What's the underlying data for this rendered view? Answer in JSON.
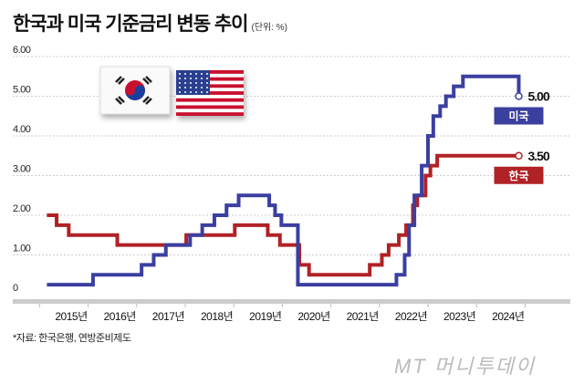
{
  "title": "한국과 미국 기준금리 변동 추이",
  "unit": "(단위: %)",
  "source": "*자료: 한국은행, 연방준비제도",
  "logo": "MT 머니투데이",
  "colors": {
    "us": "#3b3fa0",
    "korea": "#b02226",
    "grid": "#ccc"
  },
  "chart_data": {
    "type": "line",
    "step": true,
    "title": "한국과 미국 기준금리 변동 추이",
    "ylabel": "(단위: %)",
    "ylim": [
      0,
      6
    ],
    "xlim": [
      2015,
      2025
    ],
    "yticks": [
      "0",
      "1.00",
      "2.00",
      "3.00",
      "4.00",
      "5.00",
      "6.00"
    ],
    "xticks": [
      "2015년",
      "2016년",
      "2017년",
      "2018년",
      "2019년",
      "2020년",
      "2021년",
      "2022년",
      "2023년",
      "2024년"
    ],
    "series": [
      {
        "name": "미국",
        "color": "#3b3fa0",
        "end_label": "5.00",
        "points": [
          [
            2015,
            0.25
          ],
          [
            2015.95,
            0.5
          ],
          [
            2016.95,
            0.75
          ],
          [
            2017.2,
            1.0
          ],
          [
            2017.45,
            1.25
          ],
          [
            2017.95,
            1.5
          ],
          [
            2018.2,
            1.75
          ],
          [
            2018.45,
            2.0
          ],
          [
            2018.7,
            2.25
          ],
          [
            2018.95,
            2.5
          ],
          [
            2019.58,
            2.25
          ],
          [
            2019.7,
            2.0
          ],
          [
            2019.83,
            1.75
          ],
          [
            2020.17,
            0.25
          ],
          [
            2022.2,
            0.5
          ],
          [
            2022.37,
            1.0
          ],
          [
            2022.46,
            1.75
          ],
          [
            2022.57,
            2.5
          ],
          [
            2022.72,
            3.25
          ],
          [
            2022.85,
            4.0
          ],
          [
            2022.96,
            4.5
          ],
          [
            2023.1,
            4.75
          ],
          [
            2023.22,
            5.0
          ],
          [
            2023.38,
            5.25
          ],
          [
            2023.57,
            5.5
          ],
          [
            2024.72,
            5.0
          ]
        ],
        "end": 2024.72
      },
      {
        "name": "한국",
        "color": "#b02226",
        "end_label": "3.50",
        "points": [
          [
            2015,
            2.0
          ],
          [
            2015.2,
            1.75
          ],
          [
            2015.45,
            1.5
          ],
          [
            2016.45,
            1.25
          ],
          [
            2017.87,
            1.5
          ],
          [
            2018.87,
            1.75
          ],
          [
            2019.55,
            1.5
          ],
          [
            2019.8,
            1.25
          ],
          [
            2020.2,
            0.75
          ],
          [
            2020.4,
            0.5
          ],
          [
            2021.65,
            0.75
          ],
          [
            2021.9,
            1.0
          ],
          [
            2022.04,
            1.25
          ],
          [
            2022.25,
            1.5
          ],
          [
            2022.4,
            1.75
          ],
          [
            2022.54,
            2.25
          ],
          [
            2022.63,
            2.5
          ],
          [
            2022.8,
            3.0
          ],
          [
            2022.9,
            3.25
          ],
          [
            2023.04,
            3.5
          ]
        ],
        "end": 2024.72
      }
    ]
  }
}
